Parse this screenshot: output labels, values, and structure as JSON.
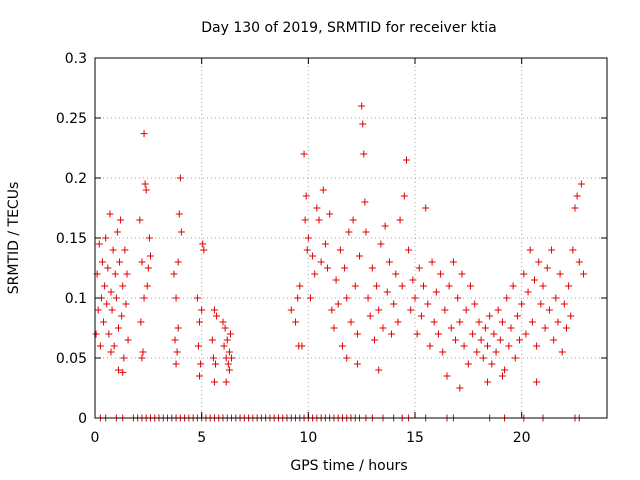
{
  "chart_data": {
    "type": "scatter",
    "title": "Day 130 of 2019, SRMTID for receiver ktia",
    "xlabel": "GPS time / hours",
    "ylabel": "SRMTID / TECUs",
    "xlim": [
      0,
      24
    ],
    "ylim": [
      0,
      0.3
    ],
    "xticks": [
      0,
      5,
      10,
      15,
      20
    ],
    "xtick_labels": [
      "0",
      "5",
      "10",
      "15",
      "20"
    ],
    "yticks": [
      0,
      0.05,
      0.1,
      0.15,
      0.2,
      0.25,
      0.3
    ],
    "ytick_labels": [
      "0",
      "0.05",
      "0.1",
      "0.15",
      "0.2",
      "0.25",
      "0.3"
    ],
    "grid": true,
    "marker": "+",
    "color": "#e00000",
    "series": [
      {
        "name": "SRMTID",
        "points": [
          [
            0.05,
            0.07
          ],
          [
            0.1,
            0.12
          ],
          [
            0.15,
            0.09
          ],
          [
            0.2,
            0.145
          ],
          [
            0.25,
            0.06
          ],
          [
            0.3,
            0.1
          ],
          [
            0.35,
            0.13
          ],
          [
            0.4,
            0.08
          ],
          [
            0.45,
            0.11
          ],
          [
            0.5,
            0.15
          ],
          [
            0.55,
            0.095
          ],
          [
            0.6,
            0.125
          ],
          [
            0.65,
            0.07
          ],
          [
            0.7,
            0.17
          ],
          [
            0.75,
            0.105
          ],
          [
            0.8,
            0.09
          ],
          [
            0.85,
            0.14
          ],
          [
            0.9,
            0.06
          ],
          [
            0.95,
            0.12
          ],
          [
            1.0,
            0.1
          ],
          [
            1.05,
            0.155
          ],
          [
            1.1,
            0.075
          ],
          [
            1.15,
            0.13
          ],
          [
            1.2,
            0.165
          ],
          [
            1.25,
            0.085
          ],
          [
            1.3,
            0.11
          ],
          [
            1.35,
            0.05
          ],
          [
            1.4,
            0.14
          ],
          [
            1.45,
            0.095
          ],
          [
            1.5,
            0.12
          ],
          [
            1.55,
            0.065
          ],
          [
            1.1,
            0.04
          ],
          [
            1.3,
            0.038
          ],
          [
            0.75,
            0.055
          ],
          [
            2.1,
            0.165
          ],
          [
            2.15,
            0.08
          ],
          [
            2.2,
            0.13
          ],
          [
            2.25,
            0.055
          ],
          [
            2.3,
            0.237
          ],
          [
            2.35,
            0.195
          ],
          [
            2.4,
            0.19
          ],
          [
            2.45,
            0.11
          ],
          [
            2.5,
            0.125
          ],
          [
            2.55,
            0.15
          ],
          [
            2.6,
            0.135
          ],
          [
            2.2,
            0.05
          ],
          [
            2.3,
            0.1
          ],
          [
            3.7,
            0.12
          ],
          [
            3.75,
            0.065
          ],
          [
            3.8,
            0.1
          ],
          [
            3.85,
            0.055
          ],
          [
            3.9,
            0.075
          ],
          [
            3.95,
            0.17
          ],
          [
            4.0,
            0.2
          ],
          [
            4.05,
            0.155
          ],
          [
            3.8,
            0.045
          ],
          [
            3.9,
            0.13
          ],
          [
            4.8,
            0.1
          ],
          [
            4.85,
            0.06
          ],
          [
            4.9,
            0.08
          ],
          [
            4.95,
            0.045
          ],
          [
            5.0,
            0.09
          ],
          [
            5.05,
            0.145
          ],
          [
            5.1,
            0.14
          ],
          [
            4.9,
            0.035
          ],
          [
            5.5,
            0.065
          ],
          [
            5.55,
            0.05
          ],
          [
            5.6,
            0.09
          ],
          [
            5.65,
            0.045
          ],
          [
            5.7,
            0.085
          ],
          [
            5.6,
            0.03
          ],
          [
            6.0,
            0.08
          ],
          [
            6.05,
            0.06
          ],
          [
            6.1,
            0.075
          ],
          [
            6.15,
            0.05
          ],
          [
            6.2,
            0.065
          ],
          [
            6.25,
            0.045
          ],
          [
            6.3,
            0.055
          ],
          [
            6.35,
            0.07
          ],
          [
            6.4,
            0.05
          ],
          [
            6.15,
            0.03
          ],
          [
            6.3,
            0.04
          ],
          [
            9.2,
            0.09
          ],
          [
            9.4,
            0.08
          ],
          [
            9.5,
            0.1
          ],
          [
            9.55,
            0.06
          ],
          [
            9.6,
            0.11
          ],
          [
            9.7,
            0.06
          ],
          [
            9.8,
            0.22
          ],
          [
            9.85,
            0.165
          ],
          [
            9.9,
            0.185
          ],
          [
            9.95,
            0.14
          ],
          [
            10.0,
            0.15
          ],
          [
            10.1,
            0.1
          ],
          [
            10.2,
            0.135
          ],
          [
            10.3,
            0.12
          ],
          [
            10.4,
            0.175
          ],
          [
            10.5,
            0.165
          ],
          [
            10.6,
            0.13
          ],
          [
            10.7,
            0.19
          ],
          [
            10.8,
            0.145
          ],
          [
            10.9,
            0.125
          ],
          [
            11.0,
            0.17
          ],
          [
            11.1,
            0.09
          ],
          [
            11.2,
            0.075
          ],
          [
            11.3,
            0.115
          ],
          [
            11.4,
            0.095
          ],
          [
            11.5,
            0.14
          ],
          [
            11.6,
            0.06
          ],
          [
            11.7,
            0.125
          ],
          [
            11.8,
            0.1
          ],
          [
            11.9,
            0.155
          ],
          [
            12.0,
            0.08
          ],
          [
            12.1,
            0.165
          ],
          [
            12.2,
            0.11
          ],
          [
            12.3,
            0.07
          ],
          [
            12.4,
            0.135
          ],
          [
            12.5,
            0.26
          ],
          [
            12.55,
            0.245
          ],
          [
            12.6,
            0.22
          ],
          [
            12.65,
            0.18
          ],
          [
            12.7,
            0.155
          ],
          [
            12.8,
            0.1
          ],
          [
            12.9,
            0.085
          ],
          [
            13.0,
            0.125
          ],
          [
            13.1,
            0.065
          ],
          [
            13.2,
            0.11
          ],
          [
            13.3,
            0.09
          ],
          [
            13.4,
            0.145
          ],
          [
            13.5,
            0.075
          ],
          [
            13.6,
            0.16
          ],
          [
            13.7,
            0.105
          ],
          [
            13.8,
            0.13
          ],
          [
            13.9,
            0.07
          ],
          [
            14.0,
            0.095
          ],
          [
            14.1,
            0.12
          ],
          [
            14.2,
            0.08
          ],
          [
            14.3,
            0.165
          ],
          [
            14.4,
            0.11
          ],
          [
            14.5,
            0.185
          ],
          [
            14.6,
            0.215
          ],
          [
            14.7,
            0.14
          ],
          [
            14.8,
            0.09
          ],
          [
            14.9,
            0.115
          ],
          [
            12.3,
            0.045
          ],
          [
            13.3,
            0.04
          ],
          [
            11.8,
            0.05
          ],
          [
            15.0,
            0.1
          ],
          [
            15.1,
            0.07
          ],
          [
            15.2,
            0.125
          ],
          [
            15.3,
            0.085
          ],
          [
            15.4,
            0.11
          ],
          [
            15.5,
            0.175
          ],
          [
            15.6,
            0.095
          ],
          [
            15.7,
            0.06
          ],
          [
            15.8,
            0.13
          ],
          [
            15.9,
            0.08
          ],
          [
            16.0,
            0.105
          ],
          [
            16.1,
            0.07
          ],
          [
            16.2,
            0.12
          ],
          [
            16.3,
            0.055
          ],
          [
            16.4,
            0.09
          ],
          [
            16.5,
            0.035
          ],
          [
            16.6,
            0.11
          ],
          [
            16.7,
            0.075
          ],
          [
            16.8,
            0.13
          ],
          [
            16.9,
            0.065
          ],
          [
            17.0,
            0.1
          ],
          [
            17.1,
            0.08
          ],
          [
            17.2,
            0.12
          ],
          [
            17.3,
            0.06
          ],
          [
            17.4,
            0.09
          ],
          [
            17.5,
            0.045
          ],
          [
            17.6,
            0.11
          ],
          [
            17.7,
            0.07
          ],
          [
            17.8,
            0.095
          ],
          [
            17.9,
            0.055
          ],
          [
            18.0,
            0.08
          ],
          [
            18.1,
            0.065
          ],
          [
            18.2,
            0.05
          ],
          [
            18.3,
            0.075
          ],
          [
            18.4,
            0.06
          ],
          [
            18.5,
            0.085
          ],
          [
            18.6,
            0.045
          ],
          [
            18.7,
            0.07
          ],
          [
            18.8,
            0.055
          ],
          [
            18.9,
            0.09
          ],
          [
            19.0,
            0.065
          ],
          [
            19.1,
            0.08
          ],
          [
            19.2,
            0.04
          ],
          [
            19.3,
            0.1
          ],
          [
            19.4,
            0.06
          ],
          [
            19.5,
            0.075
          ],
          [
            19.6,
            0.11
          ],
          [
            19.7,
            0.05
          ],
          [
            19.8,
            0.085
          ],
          [
            19.9,
            0.065
          ],
          [
            20.0,
            0.095
          ],
          [
            20.1,
            0.12
          ],
          [
            20.2,
            0.07
          ],
          [
            20.3,
            0.105
          ],
          [
            20.4,
            0.14
          ],
          [
            20.5,
            0.08
          ],
          [
            20.6,
            0.115
          ],
          [
            20.7,
            0.06
          ],
          [
            20.8,
            0.13
          ],
          [
            20.9,
            0.095
          ],
          [
            21.0,
            0.11
          ],
          [
            21.1,
            0.075
          ],
          [
            21.2,
            0.125
          ],
          [
            21.3,
            0.09
          ],
          [
            21.4,
            0.14
          ],
          [
            21.5,
            0.065
          ],
          [
            21.6,
            0.1
          ],
          [
            21.7,
            0.08
          ],
          [
            21.8,
            0.12
          ],
          [
            21.9,
            0.055
          ],
          [
            22.0,
            0.095
          ],
          [
            22.1,
            0.075
          ],
          [
            22.2,
            0.11
          ],
          [
            22.3,
            0.085
          ],
          [
            22.4,
            0.14
          ],
          [
            22.5,
            0.175
          ],
          [
            22.6,
            0.185
          ],
          [
            22.7,
            0.13
          ],
          [
            22.8,
            0.195
          ],
          [
            22.9,
            0.12
          ],
          [
            18.4,
            0.03
          ],
          [
            19.1,
            0.035
          ],
          [
            20.7,
            0.03
          ],
          [
            17.1,
            0.025
          ],
          [
            0.25,
            0.0
          ],
          [
            0.5,
            0.0
          ],
          [
            1.0,
            0.0
          ],
          [
            1.3,
            0.0
          ],
          [
            1.8,
            0.0
          ],
          [
            2.0,
            0.0
          ],
          [
            2.2,
            0.0
          ],
          [
            2.4,
            0.0
          ],
          [
            2.6,
            0.0
          ],
          [
            2.8,
            0.0
          ],
          [
            3.0,
            0.0
          ],
          [
            3.2,
            0.0
          ],
          [
            3.4,
            0.0
          ],
          [
            3.6,
            0.0
          ],
          [
            3.8,
            0.0
          ],
          [
            4.0,
            0.0
          ],
          [
            4.2,
            0.0
          ],
          [
            4.4,
            0.0
          ],
          [
            4.6,
            0.0
          ],
          [
            4.8,
            0.0
          ],
          [
            5.0,
            0.0
          ],
          [
            5.2,
            0.0
          ],
          [
            5.4,
            0.0
          ],
          [
            5.6,
            0.0
          ],
          [
            5.8,
            0.0
          ],
          [
            6.0,
            0.0
          ],
          [
            6.2,
            0.0
          ],
          [
            6.4,
            0.0
          ],
          [
            6.6,
            0.0
          ],
          [
            6.8,
            0.0
          ],
          [
            7.0,
            0.0
          ],
          [
            7.2,
            0.0
          ],
          [
            7.4,
            0.0
          ],
          [
            7.6,
            0.0
          ],
          [
            7.8,
            0.0
          ],
          [
            8.0,
            0.0
          ],
          [
            8.2,
            0.0
          ],
          [
            8.4,
            0.0
          ],
          [
            8.6,
            0.0
          ],
          [
            8.8,
            0.0
          ],
          [
            9.0,
            0.0
          ],
          [
            9.2,
            0.0
          ],
          [
            9.4,
            0.0
          ],
          [
            9.6,
            0.0
          ],
          [
            9.8,
            0.0
          ],
          [
            10.0,
            0.0
          ],
          [
            10.2,
            0.0
          ],
          [
            10.4,
            0.0
          ],
          [
            10.6,
            0.0
          ],
          [
            10.8,
            0.0
          ],
          [
            11.0,
            0.0
          ],
          [
            11.2,
            0.0
          ],
          [
            11.4,
            0.0
          ],
          [
            11.6,
            0.0
          ],
          [
            11.8,
            0.0
          ],
          [
            12.0,
            0.0
          ],
          [
            12.2,
            0.0
          ],
          [
            12.4,
            0.0
          ],
          [
            12.7,
            0.0
          ],
          [
            13.0,
            0.0
          ],
          [
            13.5,
            0.0
          ],
          [
            14.0,
            0.0
          ],
          [
            14.4,
            0.0
          ],
          [
            14.7,
            0.0
          ],
          [
            15.5,
            0.0
          ],
          [
            16.5,
            0.0
          ],
          [
            16.8,
            0.0
          ],
          [
            18.5,
            0.0
          ],
          [
            19.2,
            0.0
          ],
          [
            20.1,
            0.0
          ],
          [
            21.0,
            0.0
          ],
          [
            22.5,
            0.0
          ],
          [
            22.7,
            0.0
          ]
        ]
      }
    ]
  }
}
